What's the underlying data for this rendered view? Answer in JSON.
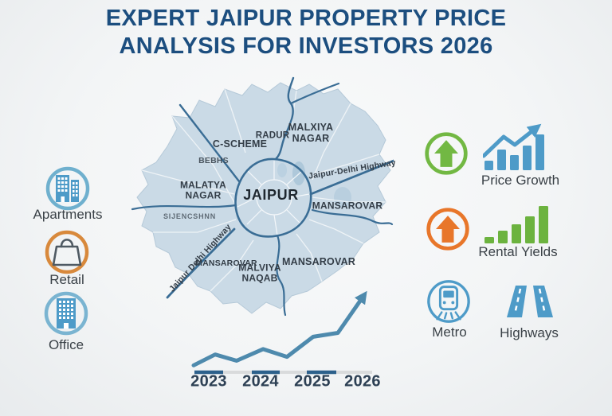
{
  "title": {
    "line1": "EXPERT JAIPUR PROPERTY PRICE",
    "line2": "ANALYSIS FOR INVESTORS 2026"
  },
  "left_legend": [
    {
      "label": "Apartments",
      "icon": "apartment-buildings-icon"
    },
    {
      "label": "Retail",
      "icon": "shopping-bag-icon"
    },
    {
      "label": "Office",
      "icon": "office-building-icon"
    }
  ],
  "right_legend": {
    "price_growth": {
      "label": "Price Growth",
      "icon": "green-up-arrow-circle-icon",
      "chart_icon": "rising-bar-chart-with-arrow-icon",
      "bars_relative": [
        12,
        26,
        19,
        31,
        45
      ],
      "bar_color": "#4e9bc8"
    },
    "rental_yields": {
      "label": "Rental Yields",
      "icon": "orange-up-arrow-circle-icon",
      "chart_icon": "ascending-green-bar-chart-icon",
      "bars_relative": [
        8,
        16,
        24,
        34,
        47
      ],
      "bar_color": "#6cb33f"
    },
    "metro": {
      "label": "Metro",
      "icon": "metro-train-icon"
    },
    "highways": {
      "label": "Highways",
      "icon": "highway-road-icon"
    }
  },
  "map": {
    "city_label": "JAIPUR",
    "areas": {
      "c_scheme": "C-SCHEME",
      "radur": "RADUR",
      "malxiya_nagar": "MALXIYA NAGAR",
      "bebhs": "BEBHS",
      "malatya_nagar": "MALATYA NAGAR",
      "sijencshnn": "SIJENCSHNN",
      "mansarovar_east": "MANSAROVAR",
      "mansarovar_southwest": "MANSAROVAR",
      "malviya_naqab": "MALVIYA NAQAB",
      "mansarovar_south": "MANSAROVAR"
    },
    "highway_labels": {
      "right": "Jaipur-Delhi Highway",
      "left": "Jaipur Delhi Highway"
    }
  },
  "chart_data": {
    "type": "line",
    "categories": [
      "2023",
      "2024",
      "2025",
      "2026"
    ],
    "points_norm": [
      [
        0,
        9
      ],
      [
        12.6,
        23
      ],
      [
        25.2,
        15
      ],
      [
        40.7,
        30
      ],
      [
        54.7,
        20
      ],
      [
        70.1,
        46
      ],
      [
        84.6,
        51
      ],
      [
        100,
        100
      ]
    ],
    "title": "",
    "xlabel": "",
    "ylabel": "",
    "y_values_labeled": false,
    "legend": "none",
    "grid": "off",
    "line_color": "#4e8aad",
    "axis_tick_color_dark": "#2d618c",
    "axis_tick_color_light": "#d9dbdc"
  },
  "colors": {
    "title_blue": "#1c4e7f",
    "map_fill": "#cadae6",
    "road_blue": "#3a6d95",
    "icon_blue": "#4e9bc8",
    "green": "#72b843",
    "orange": "#e8762a",
    "retail_ring_orange": "#d8893c",
    "label_text": "#3a4147"
  }
}
